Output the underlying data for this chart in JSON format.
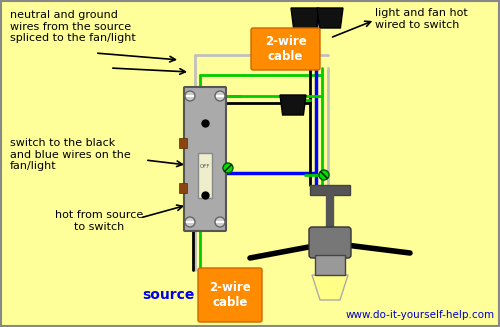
{
  "bg_color": "#FFFF99",
  "wire_colors": {
    "black": "#000000",
    "white": "#C0C0C0",
    "green": "#00CC00",
    "blue": "#0000FF",
    "gray": "#888888"
  },
  "labels": {
    "top_left": "neutral and ground\nwires from the source\nspliced to the fan/light",
    "mid_left": "switch to the black\nand blue wires on the\nfan/light",
    "bot_left": "hot from source\nto switch",
    "source": "source",
    "cable_top": "2-wire\ncable",
    "cable_bot": "2-wire\ncable",
    "top_right": "light and fan hot\nwired to switch",
    "website": "www.do-it-yourself-help.com"
  },
  "orange_color": "#FF8C00",
  "blue_label_color": "#0000EE",
  "switch_color": "#AAAAAA",
  "fan_dark": "#555555",
  "fan_mid": "#777777",
  "fan_light": "#999999",
  "lamp_color": "#FFFF88",
  "green_dot_color": "#00DD00",
  "screw_color": "#CCCCCC",
  "brown_color": "#8B4513"
}
